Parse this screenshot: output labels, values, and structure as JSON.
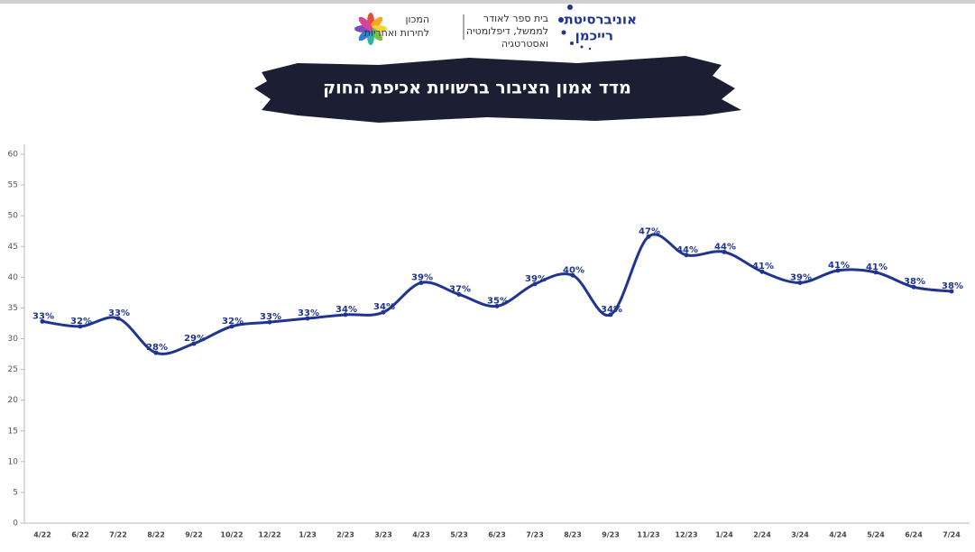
{
  "header": {
    "university": [
      "אוניברסיטת",
      "רייכמן"
    ],
    "school": [
      "בית ספר לאודר",
      "לממשל, דיפלומטיה",
      "ואסטרטגיה"
    ],
    "institute": [
      "המכון",
      "לחירות ואחריות"
    ]
  },
  "chart_data": {
    "type": "line",
    "title": "מדד אמון הציבור ברשויות אכיפת החוק",
    "categories": [
      "4/22",
      "6/22",
      "7/22",
      "8/22",
      "9/22",
      "10/22",
      "12/22",
      "1/23",
      "2/23",
      "3/23",
      "4/23",
      "5/23",
      "6/23",
      "7/23",
      "8/23",
      "9/23",
      "11/23",
      "12/23",
      "1/24",
      "2/24",
      "3/24",
      "4/24",
      "5/24",
      "6/24",
      "7/24"
    ],
    "values": [
      32.8,
      32.0,
      33.3,
      27.7,
      29.2,
      32.0,
      32.7,
      33.3,
      33.9,
      34.3,
      39.1,
      37.2,
      35.3,
      38.9,
      40.3,
      33.9,
      46.6,
      43.6,
      44.1,
      40.9,
      39.1,
      41.1,
      40.8,
      38.4,
      37.7
    ],
    "value_labels": [
      "33%",
      "32%",
      "33%",
      "28%",
      "29%",
      "32%",
      "33%",
      "33%",
      "34%",
      "34%",
      "39%",
      "37%",
      "35%",
      "39%",
      "40%",
      "34%",
      "47%",
      "44%",
      "44%",
      "41%",
      "39%",
      "41%",
      "41%",
      "38%",
      "38%"
    ],
    "color": "#1f3590",
    "ylim": [
      0,
      60
    ],
    "yticks": [
      0,
      5,
      10,
      15,
      20,
      25,
      30,
      35,
      40,
      45,
      50,
      55,
      60
    ]
  }
}
